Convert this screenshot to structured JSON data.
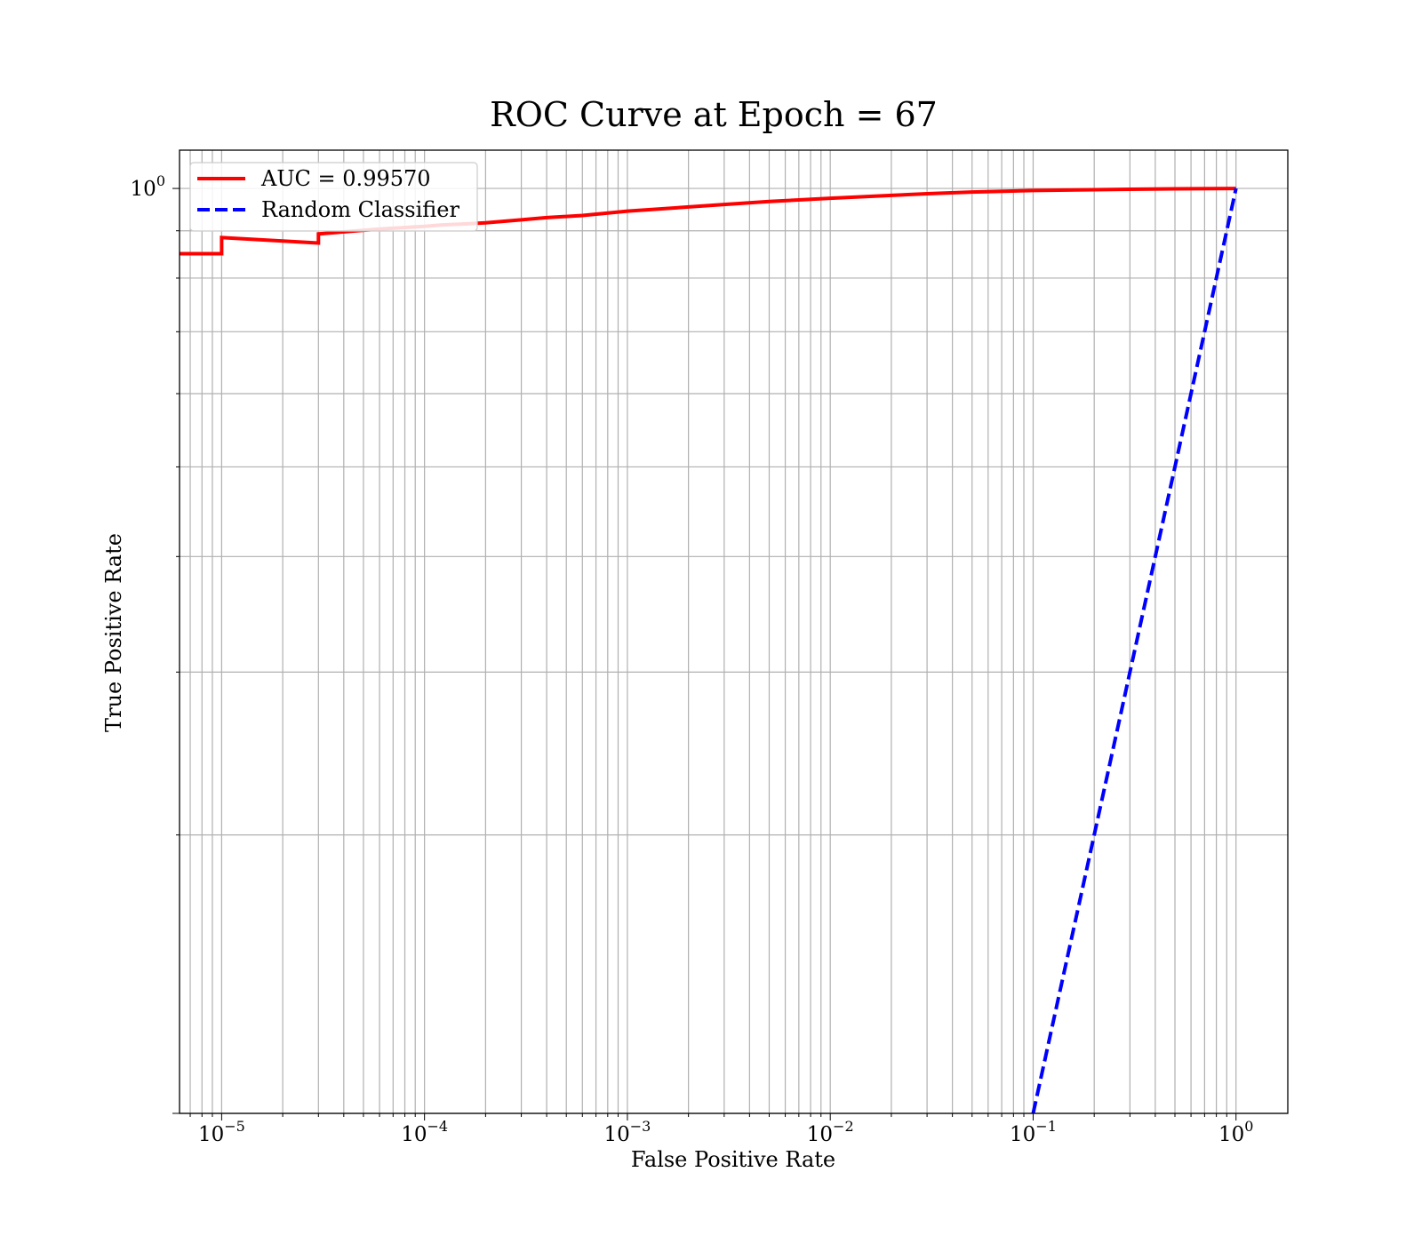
{
  "chart_data": {
    "type": "line",
    "title": "ROC Curve at Epoch = 67",
    "xlabel": "False Positive Rate",
    "ylabel": "True Positive Rate",
    "xscale": "log",
    "yscale": "log",
    "xlim": [
      6.2e-06,
      1.8
    ],
    "ylim": [
      0.1,
      1.1
    ],
    "grid": "both, major and minor",
    "legend_position": "upper-left",
    "x_ticks": [
      {
        "base": "10",
        "exp": "−5",
        "value": 1e-05
      },
      {
        "base": "10",
        "exp": "−4",
        "value": 0.0001
      },
      {
        "base": "10",
        "exp": "−3",
        "value": 0.001
      },
      {
        "base": "10",
        "exp": "−2",
        "value": 0.01
      },
      {
        "base": "10",
        "exp": "−1",
        "value": 0.1
      },
      {
        "base": "10",
        "exp": "0",
        "value": 1
      }
    ],
    "y_ticks": [
      {
        "base": "10",
        "exp": "0",
        "value": 1
      }
    ],
    "series": [
      {
        "name": "AUC = 0.99570",
        "color": "#ff0000",
        "style": "solid",
        "x": [
          6.2e-06,
          1e-05,
          1e-05,
          3e-05,
          3e-05,
          6e-05,
          0.0001,
          0.00012,
          0.00015,
          0.0002,
          0.0003,
          0.0004,
          0.0006,
          0.001,
          0.002,
          0.003,
          0.005,
          0.01,
          0.02,
          0.03,
          0.05,
          0.1,
          0.2,
          0.5,
          1
        ],
        "y": [
          0.85,
          0.85,
          0.885,
          0.873,
          0.893,
          0.904,
          0.91,
          0.913,
          0.915,
          0.918,
          0.925,
          0.93,
          0.935,
          0.945,
          0.955,
          0.961,
          0.968,
          0.976,
          0.983,
          0.987,
          0.991,
          0.995,
          0.997,
          0.999,
          1.0
        ]
      },
      {
        "name": "Random Classifier",
        "color": "#0000ff",
        "style": "dashed",
        "x": [
          0.1,
          1
        ],
        "y": [
          0.1,
          1
        ]
      }
    ]
  }
}
